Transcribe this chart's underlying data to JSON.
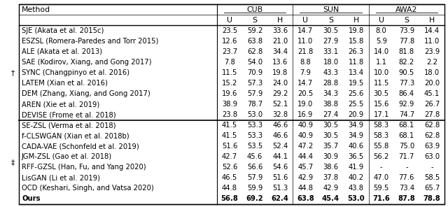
{
  "group_headers": [
    "CUB",
    "SUN",
    "AWA2"
  ],
  "subheaders": [
    "U",
    "S",
    "H"
  ],
  "section1_marker": "†",
  "section2_marker": "‡",
  "section1_rows": [
    [
      "SJE (Akata et al. 2015c)",
      "23.5",
      "59.2",
      "33.6",
      "14.7",
      "30.5",
      "19.8",
      "8.0",
      "73.9",
      "14.4"
    ],
    [
      "ESZSL (Romera-Paredes and Torr 2015)",
      "12.6",
      "63.8",
      "21.0",
      "11.0",
      "27.9",
      "15.8",
      "5.9",
      "77.8",
      "11.0"
    ],
    [
      "ALE (Akata et al. 2013)",
      "23.7",
      "62.8",
      "34.4",
      "21.8",
      "33.1",
      "26.3",
      "14.0",
      "81.8",
      "23.9"
    ],
    [
      "SAE (Kodirov, Xiang, and Gong 2017)",
      "7.8",
      "54.0",
      "13.6",
      "8.8",
      "18.0",
      "11.8",
      "1.1",
      "82.2",
      "2.2"
    ],
    [
      "SYNC (Changpinyo et al. 2016)",
      "11.5",
      "70.9",
      "19.8",
      "7.9",
      "43.3",
      "13.4",
      "10.0",
      "90.5",
      "18.0"
    ],
    [
      "LATEM (Xian et al. 2016)",
      "15.2",
      "57.3",
      "24.0",
      "14.7",
      "28.8",
      "19.5",
      "11.5",
      "77.3",
      "20.0"
    ],
    [
      "DEM (Zhang, Xiang, and Gong 2017)",
      "19.6",
      "57.9",
      "29.2",
      "20.5",
      "34.3",
      "25.6",
      "30.5",
      "86.4",
      "45.1"
    ],
    [
      "AREN (Xie et al. 2019)",
      "38.9",
      "78.7",
      "52.1",
      "19.0",
      "38.8",
      "25.5",
      "15.6",
      "92.9",
      "26.7"
    ],
    [
      "DEVISE (Frome et al. 2018)",
      "23.8",
      "53.0",
      "32.8",
      "16.9",
      "27.4",
      "20.9",
      "17.1",
      "74.7",
      "27.8"
    ]
  ],
  "section2_rows": [
    [
      "SE-ZSL (Verma et al. 2018)",
      "41.5",
      "53.3",
      "46.6",
      "40.9",
      "30.5",
      "34.9",
      "58.3",
      "68.1",
      "62.8"
    ],
    [
      "f-CLSWGAN (Xian et al. 2018b)",
      "41.5",
      "53.3",
      "46.6",
      "40.9",
      "30.5",
      "34.9",
      "58.3",
      "68.1",
      "62.8"
    ],
    [
      "CADA-VAE (Schonfeld et al. 2019)",
      "51.6",
      "53.5",
      "52.4",
      "47.2",
      "35.7",
      "40.6",
      "55.8",
      "75.0",
      "63.9"
    ],
    [
      "JGM-ZSL (Gao et al. 2018)",
      "42.7",
      "45.6",
      "44.1",
      "44.4",
      "30.9",
      "36.5",
      "56.2",
      "71.7",
      "63.0"
    ],
    [
      "RFF-GZSL (Han, Fu, and Yang 2020)",
      "52.6",
      "56.6",
      "54.6",
      "45.7",
      "38.6",
      "41.9",
      "-",
      "-",
      "-"
    ],
    [
      "LisGAN (Li et al. 2019)",
      "46.5",
      "57.9",
      "51.6",
      "42.9",
      "37.8",
      "40.2",
      "47.0",
      "77.6",
      "58.5"
    ],
    [
      "OCD (Keshari, Singh, and Vatsa 2020)",
      "44.8",
      "59.9",
      "51.3",
      "44.8",
      "42.9",
      "43.8",
      "59.5",
      "73.4",
      "65.7"
    ],
    [
      "Ours",
      "56.8",
      "69.2",
      "62.4",
      "63.8",
      "45.4",
      "53.0",
      "71.6",
      "87.8",
      "78.8"
    ]
  ],
  "bg_color": "#ffffff",
  "font_size": 7.2,
  "header_font_size": 7.8,
  "figsize": [
    6.4,
    2.96
  ]
}
